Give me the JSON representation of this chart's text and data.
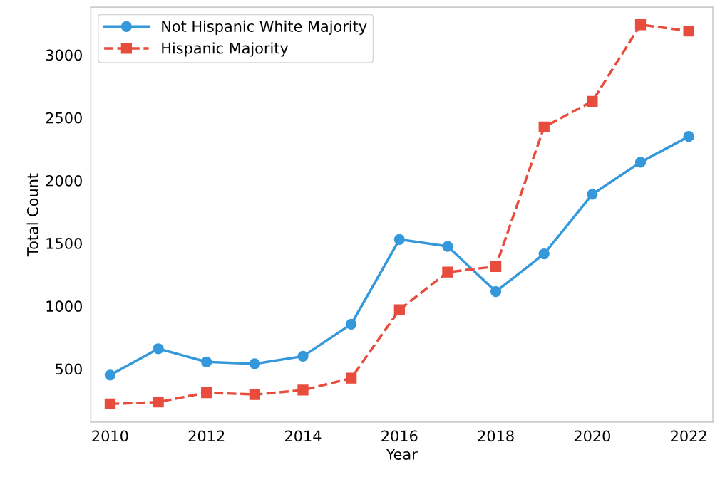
{
  "chart_data": {
    "type": "line",
    "xlabel": "Year",
    "ylabel": "Total Count",
    "x": [
      2010,
      2011,
      2012,
      2013,
      2014,
      2015,
      2016,
      2017,
      2018,
      2019,
      2020,
      2021,
      2022
    ],
    "series": [
      {
        "name": "Not Hispanic White Majority",
        "color": "#3498db",
        "marker": "circle",
        "line_style": "solid",
        "values": [
          450,
          660,
          555,
          540,
          600,
          855,
          1530,
          1475,
          1115,
          1415,
          1890,
          2145,
          2350
        ]
      },
      {
        "name": "Hispanic Majority",
        "color": "#e74c3c",
        "marker": "square",
        "line_style": "dashed",
        "values": [
          220,
          235,
          310,
          295,
          330,
          425,
          970,
          1270,
          1315,
          2425,
          2630,
          3240,
          3190
        ]
      }
    ],
    "xlim": [
      2009.6,
      2022.5
    ],
    "ylim": [
      75,
      3380
    ],
    "xticks": [
      2010,
      2012,
      2014,
      2016,
      2018,
      2020,
      2022
    ],
    "yticks": [
      500,
      1000,
      1500,
      2000,
      2500,
      3000
    ],
    "grid": false,
    "legend": "top left"
  }
}
